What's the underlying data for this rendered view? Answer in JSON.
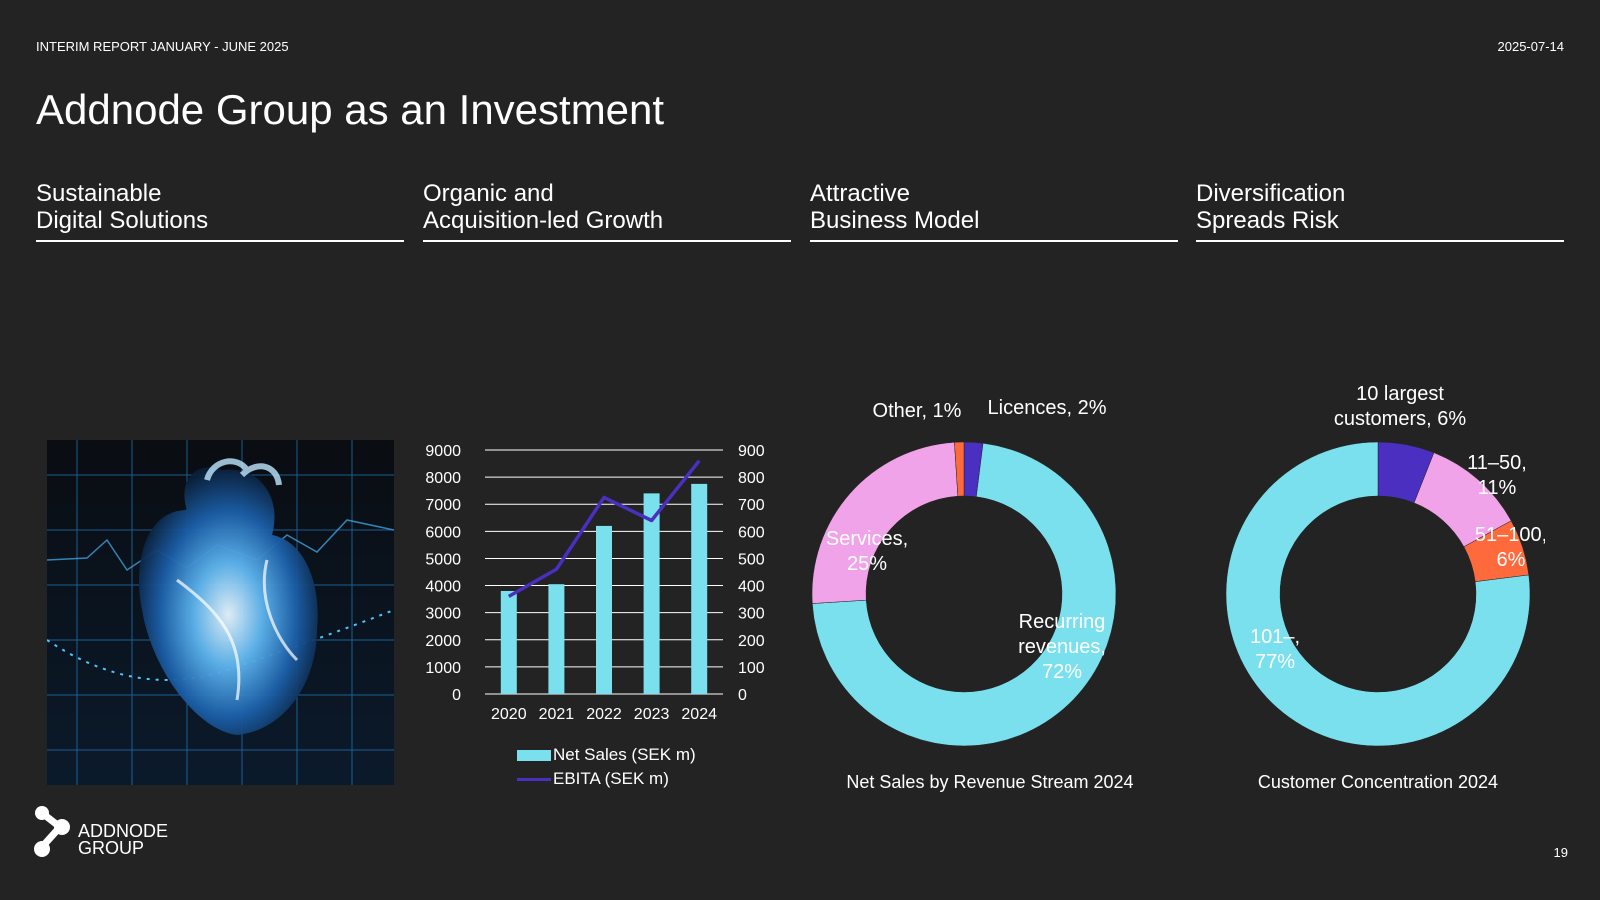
{
  "header": {
    "report_title": "INTERIM REPORT JANUARY - JUNE 2025",
    "date": "2025-07-14"
  },
  "page_title": "Addnode Group as an Investment",
  "columns": [
    {
      "line1": "Sustainable",
      "line2": "Digital Solutions"
    },
    {
      "line1": "Organic and",
      "line2": "Acquisition-led Growth"
    },
    {
      "line1": "Attractive",
      "line2": "Business Model"
    },
    {
      "line1": "Diversification",
      "line2": "Spreads Risk"
    }
  ],
  "hero_image": {
    "icon": "anatomical-heart-hologram-image"
  },
  "legend": {
    "net_sales": "Net Sales (SEK m)",
    "ebita": "EBITA (SEK m)"
  },
  "captions": {
    "revenue_stream": "Net Sales by Revenue Stream 2024",
    "customer_concentration": "Customer Concentration 2024"
  },
  "logo": {
    "line1": "ADDNODE",
    "line2": "GROUP"
  },
  "page_number": "19",
  "colors": {
    "background": "#232323",
    "cyan": "#7be0ee",
    "purple": "#4a2fc0",
    "pink": "#f0a3e8",
    "orange": "#ff6a3d"
  },
  "chart_data": [
    {
      "type": "bar",
      "categories": [
        "2020",
        "2021",
        "2022",
        "2023",
        "2024"
      ],
      "series": [
        {
          "name": "Net Sales (SEK m)",
          "type": "bar",
          "axis": "left",
          "values": [
            3800,
            4050,
            6200,
            7400,
            7750
          ]
        },
        {
          "name": "EBITA (SEK m)",
          "type": "line",
          "axis": "right",
          "values": [
            360,
            460,
            725,
            640,
            860
          ]
        }
      ],
      "y_left": {
        "ylim": [
          0,
          9000
        ],
        "ticks": [
          "0",
          "1000",
          "2000",
          "3000",
          "4000",
          "5000",
          "6000",
          "7000",
          "8000",
          "9000"
        ]
      },
      "y_right": {
        "ylim": [
          0,
          900
        ],
        "ticks": [
          "0",
          "100",
          "200",
          "300",
          "400",
          "500",
          "600",
          "700",
          "800",
          "900"
        ]
      },
      "grid": true,
      "legend_position": "bottom"
    },
    {
      "type": "pie",
      "donut": true,
      "title": "Net Sales by Revenue Stream 2024",
      "slices": [
        {
          "label": "Licences, 2%",
          "value": 2,
          "color": "#4a2fc0"
        },
        {
          "label": "Recurring revenues, 72%",
          "value": 72,
          "color": "#7be0ee"
        },
        {
          "label": "Services, 25%",
          "value": 25,
          "color": "#f0a3e8"
        },
        {
          "label": "Other, 1%",
          "value": 1,
          "color": "#ff6a3d"
        }
      ]
    },
    {
      "type": "pie",
      "donut": true,
      "title": "Customer Concentration 2024",
      "slices": [
        {
          "label": "10 largest customers, 6%",
          "value": 6,
          "color": "#4a2fc0"
        },
        {
          "label": "11–50, 11%",
          "value": 11,
          "color": "#f0a3e8"
        },
        {
          "label": "51–100, 6%",
          "value": 6,
          "color": "#ff6a3d"
        },
        {
          "label": "101–, 77%",
          "value": 77,
          "color": "#7be0ee"
        }
      ]
    }
  ]
}
